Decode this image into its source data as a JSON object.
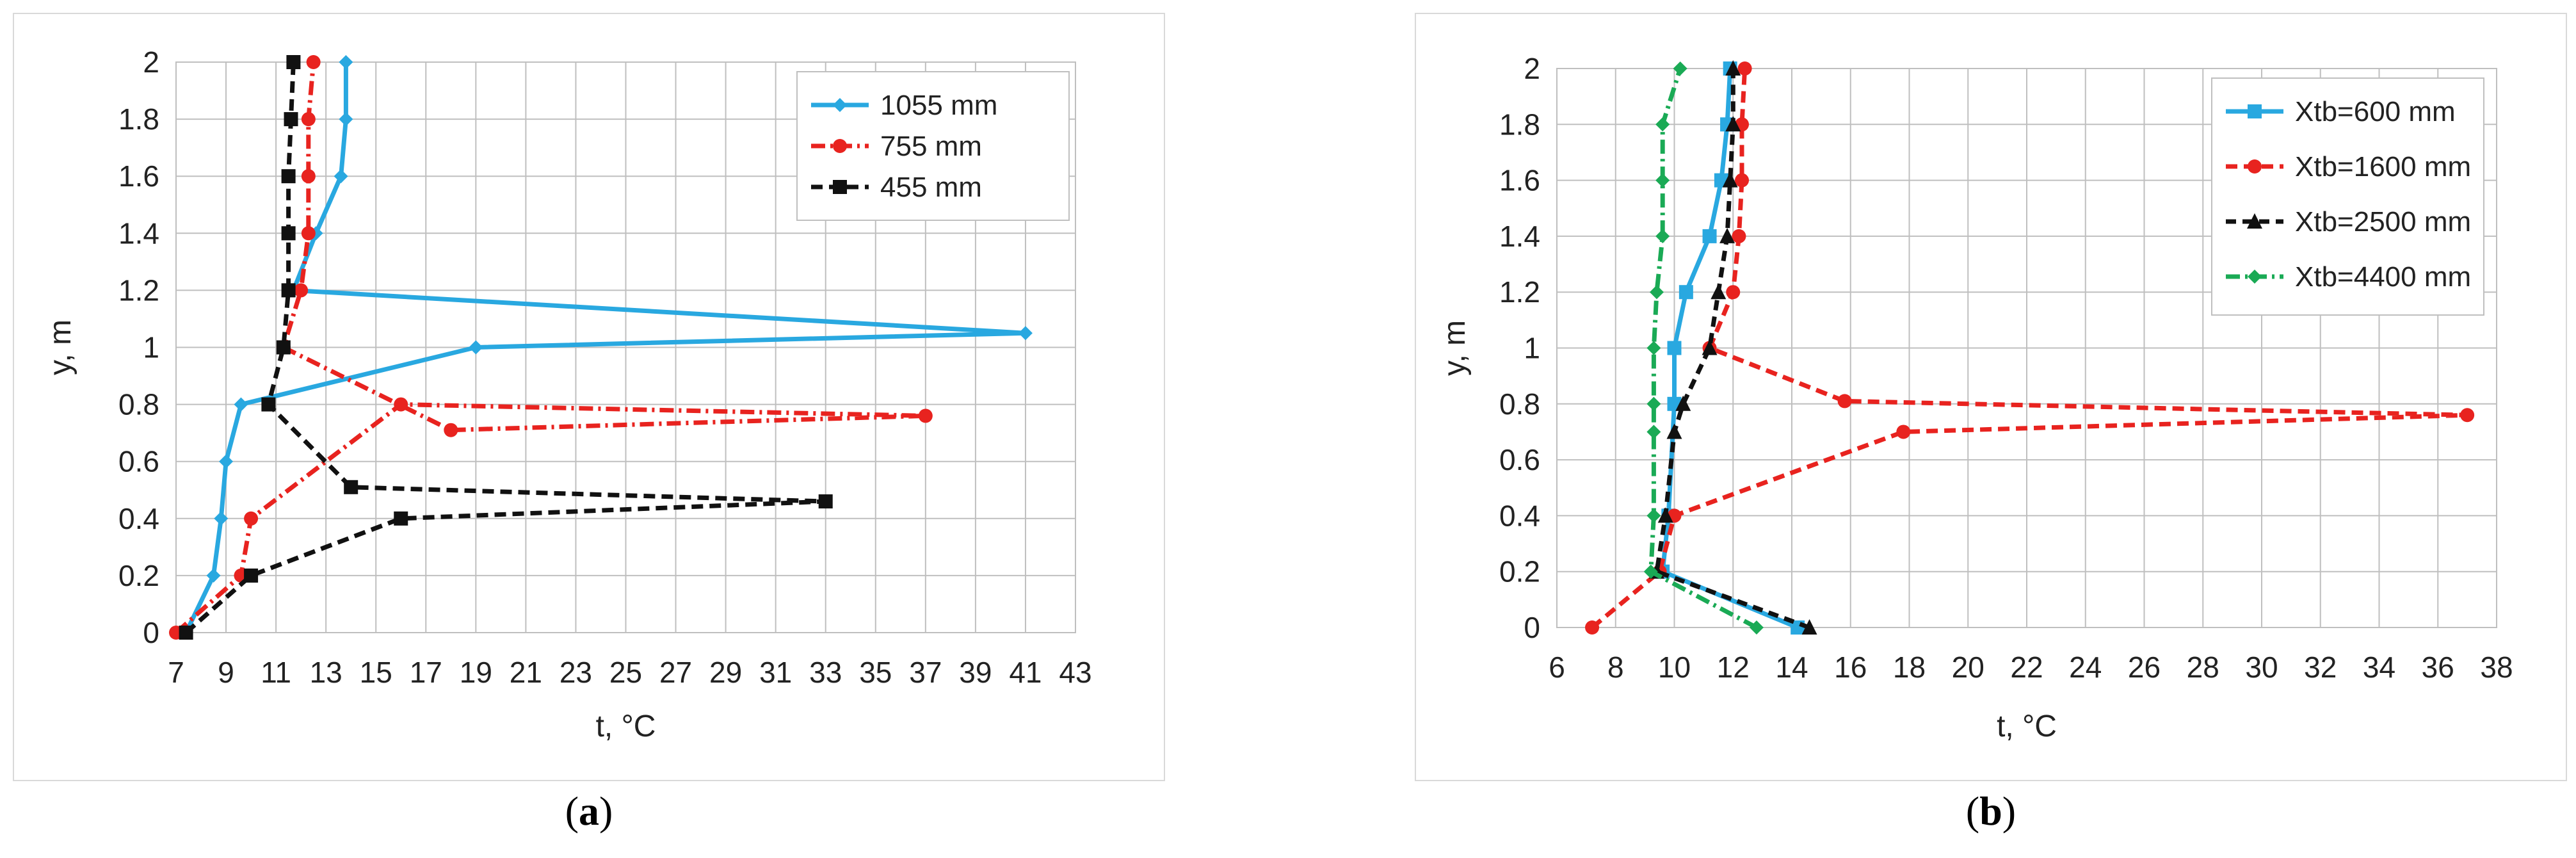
{
  "chart_data": [
    {
      "type": "line",
      "panel_label": "a",
      "xlabel": "t, °C",
      "ylabel": "y, m",
      "xlim": [
        7,
        43
      ],
      "ylim": [
        0,
        2
      ],
      "x_ticks": [
        "7",
        "9",
        "11",
        "13",
        "15",
        "17",
        "19",
        "21",
        "23",
        "25",
        "27",
        "29",
        "31",
        "33",
        "35",
        "37",
        "39",
        "41",
        "43"
      ],
      "y_ticks": [
        "0",
        "0.2",
        "0.4",
        "0.6",
        "0.8",
        "1",
        "1.2",
        "1.4",
        "1.6",
        "1.8",
        "2"
      ],
      "grid": true,
      "legend": "top-right",
      "series": [
        {
          "name": "1055 mm",
          "color": "#29a8e0",
          "dash": "",
          "marker": "diamond",
          "points": [
            [
              7.4,
              0
            ],
            [
              8.5,
              0.2
            ],
            [
              8.8,
              0.4
            ],
            [
              9.0,
              0.6
            ],
            [
              9.6,
              0.8
            ],
            [
              19,
              1.0
            ],
            [
              41,
              1.05
            ],
            [
              11.7,
              1.2
            ],
            [
              12.6,
              1.4
            ],
            [
              13.6,
              1.6
            ],
            [
              13.8,
              1.8
            ],
            [
              13.8,
              2.0
            ]
          ]
        },
        {
          "name": "755 mm",
          "color": "#e8231f",
          "dash": "22 8 4 8",
          "marker": "circle",
          "points": [
            [
              7.0,
              0
            ],
            [
              9.6,
              0.2
            ],
            [
              10.0,
              0.4
            ],
            [
              16.0,
              0.8
            ],
            [
              37.0,
              0.76
            ],
            [
              18.0,
              0.71
            ],
            [
              11.3,
              1.0
            ],
            [
              12.0,
              1.2
            ],
            [
              12.3,
              1.4
            ],
            [
              12.3,
              1.6
            ],
            [
              12.3,
              1.8
            ],
            [
              12.5,
              2.0
            ]
          ]
        },
        {
          "name": "455 mm",
          "color": "#111111",
          "dash": "18 10",
          "marker": "square",
          "points": [
            [
              7.4,
              0
            ],
            [
              10.0,
              0.2
            ],
            [
              16.0,
              0.4
            ],
            [
              33.0,
              0.46
            ],
            [
              14.0,
              0.51
            ],
            [
              10.7,
              0.8
            ],
            [
              11.3,
              1.0
            ],
            [
              11.5,
              1.2
            ],
            [
              11.5,
              1.4
            ],
            [
              11.5,
              1.6
            ],
            [
              11.6,
              1.8
            ],
            [
              11.7,
              2.0
            ]
          ]
        }
      ]
    },
    {
      "type": "line",
      "panel_label": "b",
      "xlabel": "t, °C",
      "ylabel": "y, m",
      "xlim": [
        6,
        38
      ],
      "ylim": [
        0,
        2
      ],
      "x_ticks": [
        "6",
        "8",
        "10",
        "12",
        "14",
        "16",
        "18",
        "20",
        "22",
        "24",
        "26",
        "28",
        "30",
        "32",
        "34",
        "36",
        "38"
      ],
      "y_ticks": [
        "0",
        "0.2",
        "0.4",
        "0.6",
        "0.8",
        "1",
        "1.2",
        "1.4",
        "1.6",
        "1.8",
        "2"
      ],
      "grid": true,
      "legend": "top-right",
      "series": [
        {
          "name": "Xtb=600 mm",
          "color": "#29a8e0",
          "dash": "",
          "marker": "square",
          "points": [
            [
              14.2,
              0
            ],
            [
              9.6,
              0.2
            ],
            [
              9.8,
              0.4
            ],
            [
              10.0,
              0.8
            ],
            [
              10.0,
              1.0
            ],
            [
              10.4,
              1.2
            ],
            [
              11.2,
              1.4
            ],
            [
              11.6,
              1.6
            ],
            [
              11.8,
              1.8
            ],
            [
              11.9,
              2.0
            ]
          ]
        },
        {
          "name": "Xtb=1600 mm",
          "color": "#e8231f",
          "dash": "18 10",
          "marker": "circle",
          "points": [
            [
              7.2,
              0
            ],
            [
              9.5,
              0.2
            ],
            [
              10.0,
              0.4
            ],
            [
              17.8,
              0.7
            ],
            [
              37.0,
              0.76
            ],
            [
              15.8,
              0.81
            ],
            [
              11.2,
              1.0
            ],
            [
              12.0,
              1.2
            ],
            [
              12.2,
              1.4
            ],
            [
              12.3,
              1.6
            ],
            [
              12.3,
              1.8
            ],
            [
              12.4,
              2.0
            ]
          ]
        },
        {
          "name": "Xtb=2500 mm",
          "color": "#111111",
          "dash": "16 10",
          "marker": "triangle",
          "points": [
            [
              14.6,
              0
            ],
            [
              9.4,
              0.2
            ],
            [
              9.7,
              0.4
            ],
            [
              10.0,
              0.7
            ],
            [
              10.3,
              0.8
            ],
            [
              11.2,
              1.0
            ],
            [
              11.5,
              1.2
            ],
            [
              11.8,
              1.4
            ],
            [
              11.9,
              1.6
            ],
            [
              12.0,
              1.8
            ],
            [
              12.0,
              2.0
            ]
          ]
        },
        {
          "name": "Xtb=4400 mm",
          "color": "#1aaa55",
          "dash": "22 8 4 8",
          "marker": "diamond",
          "points": [
            [
              12.8,
              0
            ],
            [
              9.2,
              0.2
            ],
            [
              9.3,
              0.4
            ],
            [
              9.3,
              0.7
            ],
            [
              9.3,
              0.8
            ],
            [
              9.3,
              1.0
            ],
            [
              9.4,
              1.2
            ],
            [
              9.6,
              1.4
            ],
            [
              9.6,
              1.6
            ],
            [
              9.6,
              1.8
            ],
            [
              10.2,
              2.0
            ]
          ]
        }
      ]
    }
  ]
}
